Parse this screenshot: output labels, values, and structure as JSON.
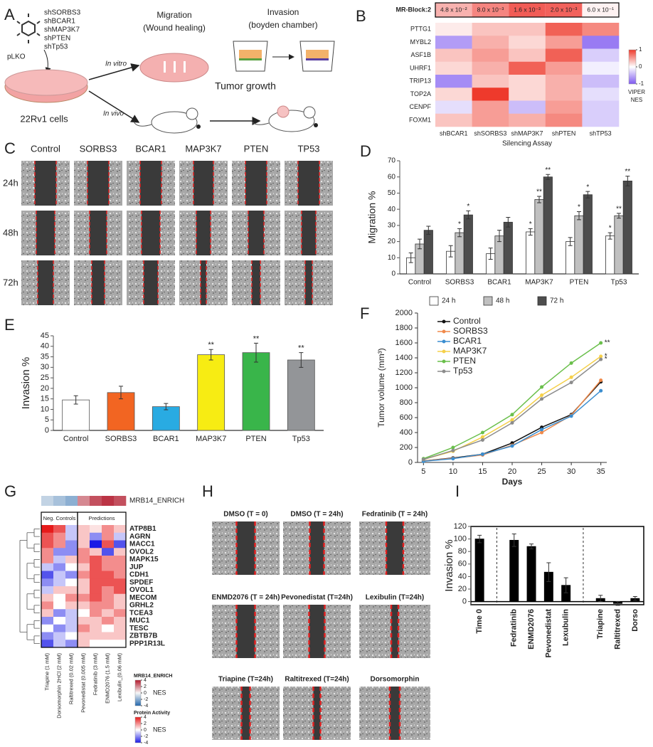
{
  "letters": [
    "A",
    "B",
    "C",
    "D",
    "E",
    "F",
    "G",
    "H",
    "I"
  ],
  "diagram": {
    "vectors": [
      "shSORBS3",
      "shBCAR1",
      "shMAP3K7",
      "shPTEN",
      "shTp53"
    ],
    "backbone": "pLKO",
    "cells": "22Rv1 cells",
    "in_vitro": "In vitro",
    "in_vivo": "In vivo",
    "migration": "Migration",
    "migration_method": "(Wound healing)",
    "invasion": "Invasion",
    "invasion_method": "(boyden chamber)",
    "tumor_growth": "Tumor growth"
  },
  "wound_images": {
    "columns": [
      "Control",
      "SORBS3",
      "BCAR1",
      "MAP3K7",
      "PTEN",
      "TP53"
    ],
    "rows": [
      "24h",
      "48h",
      "72h"
    ]
  },
  "drug_images": {
    "titles": [
      "DMSO (T = 0)",
      "DMSO (T = 24h)",
      "Fedratinib (T = 24h)",
      "ENMD2076 (T = 24h)",
      "Pevonedistat (T=24h)",
      "Lexibulin (T=24h)",
      "Triapine (T=24h)",
      "Raltitrexed (T=24h)",
      "Dorsomorphin"
    ]
  },
  "chart_data": [
    {
      "type": "heatmap",
      "top_row": {
        "label": "MR-Block:2",
        "values": [
          {
            "value": 0.048,
            "label": "4.8 x 10⁻²"
          },
          {
            "value": 0.008,
            "label": "8.0 x 10⁻³"
          },
          {
            "value": 0.0016,
            "label": "1.6 x 10⁻³"
          },
          {
            "value": 0.002,
            "label": "2.0 x 10⁻³"
          },
          {
            "value": 0.6,
            "label": "6.0 x 10⁻¹"
          }
        ]
      },
      "rows": [
        "PTTG1",
        "MYBL2",
        "ASF1B",
        "UHRF1",
        "TRIP13",
        "TOP2A",
        "CENPF",
        "FOXM1"
      ],
      "columns": [
        "shBCAR1",
        "shSORBS3",
        "shMAP3K7",
        "shPTEN",
        "shTP53"
      ],
      "values": [
        [
          0.1,
          0.3,
          0.3,
          0.8,
          0.6
        ],
        [
          -0.6,
          0.4,
          0.2,
          0.5,
          -0.8
        ],
        [
          0.3,
          0.5,
          0.3,
          0.8,
          -0.3
        ],
        [
          0.2,
          0.4,
          0.8,
          0.5,
          -0.1
        ],
        [
          -0.7,
          0.3,
          0.2,
          0.4,
          -0.4
        ],
        [
          0.2,
          1.0,
          0.2,
          0.4,
          -0.2
        ],
        [
          -0.2,
          0.5,
          -0.4,
          0.5,
          -0.3
        ],
        [
          0.3,
          0.5,
          0.4,
          0.6,
          -0.3
        ]
      ],
      "x_label": "Silencing Assay",
      "clim": [
        -1,
        1
      ],
      "colormap": [
        "#7f5af0",
        "#ffffff",
        "#ee3a2c"
      ],
      "colorbar": {
        "ticks": [
          1,
          0,
          -1
        ],
        "label": [
          "VIPER",
          "NES"
        ]
      }
    },
    {
      "type": "bar",
      "y_label": "Migration %",
      "categories": [
        "Control",
        "SORBS3",
        "BCAR1",
        "MAP3K7",
        "PTEN",
        "Tp53"
      ],
      "series": [
        {
          "name": "24 h",
          "color": "#ffffff",
          "values": [
            10,
            14,
            12.5,
            26,
            20,
            23.5
          ],
          "errors": [
            3,
            3.5,
            3.5,
            2,
            2.5,
            2
          ],
          "significance": [
            null,
            null,
            null,
            "*",
            null,
            "*"
          ]
        },
        {
          "name": "48 h",
          "color": "#c0c0c0",
          "values": [
            18.5,
            25.5,
            23.5,
            46,
            36,
            36
          ],
          "errors": [
            3,
            2.5,
            3.5,
            2,
            2.5,
            1.5
          ],
          "significance": [
            null,
            "*",
            null,
            "**",
            "*",
            "**"
          ]
        },
        {
          "name": "72 h",
          "color": "#4d4d4d",
          "values": [
            27,
            36.5,
            32,
            60,
            49,
            57.5
          ],
          "errors": [
            2.5,
            2.5,
            3,
            1.5,
            2,
            3
          ],
          "significance": [
            null,
            "*",
            null,
            "**",
            "*",
            "**"
          ]
        }
      ],
      "ylim": [
        0,
        70
      ],
      "yticks": [
        0,
        10,
        20,
        30,
        40,
        50,
        60,
        70
      ]
    },
    {
      "type": "bar",
      "y_label": "Invasion %",
      "categories": [
        "Control",
        "SORBS3",
        "BCAR1",
        "MAP3K7",
        "PTEN",
        "Tp53"
      ],
      "values": [
        14.5,
        18,
        11.3,
        36,
        37,
        33.5
      ],
      "errors": [
        2,
        3,
        1.5,
        2.5,
        4.5,
        3.5
      ],
      "significance": [
        null,
        null,
        null,
        "**",
        "**",
        "**"
      ],
      "colors": [
        "#ffffff",
        "#f26522",
        "#29abe2",
        "#f7ec13",
        "#39b54a",
        "#939598"
      ],
      "ylim": [
        0,
        45
      ],
      "yticks": [
        0,
        5,
        10,
        15,
        20,
        25,
        30,
        35,
        40,
        45
      ]
    },
    {
      "type": "line",
      "y_label": "Tumor volume (mm³)",
      "x_label": "Days",
      "x": [
        5,
        10,
        15,
        20,
        25,
        30,
        35
      ],
      "series": [
        {
          "name": "Control",
          "color": "#111111",
          "values": [
            20,
            60,
            110,
            260,
            470,
            640,
            1080
          ]
        },
        {
          "name": "SORBS3",
          "color": "#f08a4b",
          "values": [
            20,
            55,
            100,
            230,
            400,
            630,
            1100
          ]
        },
        {
          "name": "BCAR1",
          "color": "#3b8ed0",
          "values": [
            15,
            50,
            110,
            220,
            440,
            620,
            960
          ]
        },
        {
          "name": "MAP3K7",
          "color": "#f5d04a",
          "values": [
            40,
            150,
            340,
            570,
            900,
            1140,
            1420
          ],
          "significance": "*"
        },
        {
          "name": "PTEN",
          "color": "#6abf4b",
          "values": [
            50,
            200,
            400,
            640,
            1010,
            1330,
            1600
          ],
          "significance": "**"
        },
        {
          "name": "Tp53",
          "color": "#8c8c8c",
          "values": [
            40,
            160,
            300,
            530,
            850,
            1070,
            1380
          ],
          "significance": "*"
        }
      ],
      "xlim": [
        4,
        36
      ],
      "xticks": [
        5,
        10,
        15,
        20,
        25,
        30,
        35
      ],
      "ylim": [
        0,
        2000
      ],
      "yticks": [
        0,
        200,
        400,
        600,
        800,
        1000,
        1200,
        1400,
        1600,
        1800,
        2000
      ]
    },
    {
      "type": "heatmap",
      "annotation_row": {
        "label": "MRB14_ENRICH",
        "values": [
          -1,
          -1.5,
          -2,
          2,
          3,
          3.5,
          3
        ]
      },
      "groups": [
        {
          "label": "Neg. Controls",
          "span": 3
        },
        {
          "label": "Predictions",
          "span": 4
        }
      ],
      "rows": [
        "ATP8B1",
        "AGRN",
        "MACC1",
        "OVOL2",
        "MAPK15",
        "JUP",
        "CDH1",
        "SPDEF",
        "OVOL1",
        "MECOM",
        "GRHL2",
        "TCEA3",
        "MUC1",
        "TESC",
        "ZBTB7B",
        "PPP1R13L"
      ],
      "columns": [
        "Triapine (1 mM)",
        "Dorsomorphin 2HCl (2 mM)",
        "Raltitrexed (0.02 mM)",
        "Pevonedistat (0.005 mM)",
        "Fedratinib (3 mM)",
        "ENMD2076 (1.5 mM)",
        "Lexibulin_(0.06 mM)"
      ],
      "values": [
        [
          4,
          3,
          -1,
          1,
          0.5,
          2,
          1
        ],
        [
          3,
          2,
          -1,
          1,
          -2,
          2,
          -1
        ],
        [
          3,
          2,
          -2,
          1,
          -4,
          3,
          -3
        ],
        [
          2,
          -2,
          -2,
          2,
          1,
          -3,
          1
        ],
        [
          2,
          -1,
          1,
          2,
          3,
          2,
          2
        ],
        [
          -1,
          -2,
          0,
          1,
          3,
          2,
          2
        ],
        [
          -3,
          -1,
          -2,
          2,
          3,
          3,
          2
        ],
        [
          -2,
          -1,
          0,
          1,
          3,
          3,
          3
        ],
        [
          -1,
          1,
          1,
          1,
          3,
          2,
          3
        ],
        [
          1,
          0,
          2,
          2,
          3,
          2,
          1
        ],
        [
          2,
          0,
          1,
          1,
          2,
          2,
          1
        ],
        [
          1,
          -2,
          -1,
          0,
          2,
          1,
          2
        ],
        [
          -2,
          0,
          -1,
          1,
          1,
          2,
          1
        ],
        [
          0,
          -2,
          -1,
          2,
          1,
          0,
          1
        ],
        [
          -2,
          -1,
          0,
          1,
          1,
          1,
          1
        ],
        [
          -3,
          -1,
          -2,
          1,
          0,
          0,
          0
        ]
      ],
      "colorbars": [
        {
          "title": "MRB14_ENRICH",
          "clim": [
            -4,
            4
          ],
          "ticks": [
            4,
            2,
            0,
            -2,
            -4
          ],
          "label": "NES",
          "colormap": [
            "#2166ac",
            "#f7f7f7",
            "#b2182b"
          ]
        },
        {
          "title": "Protein Activity",
          "clim": [
            -4,
            4
          ],
          "ticks": [
            4,
            2,
            0,
            -2,
            -4
          ],
          "label": "NES",
          "colormap": [
            "#1a1ae6",
            "#ffffff",
            "#e61a1a"
          ]
        }
      ]
    },
    {
      "type": "bar",
      "y_label": "Invasion %",
      "categories": [
        "Time 0",
        null,
        "Fedratinib",
        "ENMD2076",
        "Pevonedistat",
        "Lexubulin",
        null,
        "Triapine",
        "Raltitrexed",
        "Dorso"
      ],
      "values": [
        100,
        null,
        98,
        88,
        47,
        26,
        null,
        5,
        -3,
        5
      ],
      "errors": [
        6,
        null,
        10,
        4,
        15,
        12,
        null,
        5,
        3,
        3
      ],
      "color": "#000000",
      "ylim": [
        -5,
        120
      ],
      "yticks": [
        0,
        20,
        40,
        60,
        80,
        100,
        120
      ]
    }
  ]
}
